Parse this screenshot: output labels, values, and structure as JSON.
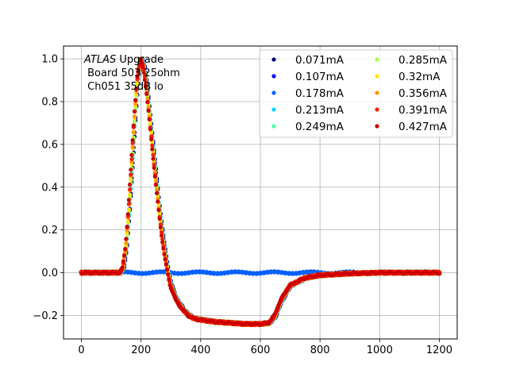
{
  "chart_data": {
    "type": "scatter",
    "title": "",
    "xlabel": "",
    "ylabel": "",
    "xlim": [
      -60,
      1260
    ],
    "ylim": [
      -0.31,
      1.06
    ],
    "xticks": [
      0,
      200,
      400,
      600,
      800,
      1000,
      1200
    ],
    "yticks": [
      -0.2,
      0.0,
      0.2,
      0.4,
      0.6,
      0.8,
      1.0
    ],
    "xtick_labels": [
      "0",
      "200",
      "400",
      "600",
      "800",
      "1000",
      "1200"
    ],
    "ytick_labels": [
      "−0.2",
      "0.0",
      "0.2",
      "0.4",
      "0.6",
      "0.8",
      "1.0"
    ],
    "grid": true,
    "legend": {
      "placement": "top-right",
      "columns": 2
    },
    "annotation": {
      "line1_italic": "ATLAS",
      "line1_rest": " Upgrade",
      "line2": " Board 503 25ohm",
      "line3": " Ch051 35dB lo"
    },
    "pulse_shape": {
      "x": [
        0,
        100,
        130,
        140,
        150,
        160,
        170,
        180,
        190,
        200,
        210,
        220,
        230,
        240,
        250,
        260,
        270,
        280,
        290,
        300,
        320,
        340,
        360,
        380,
        400,
        450,
        500,
        550,
        600,
        630,
        650,
        670,
        700,
        750,
        800,
        900,
        1000,
        1100,
        1200
      ],
      "y": [
        0.0,
        0.0,
        0.0,
        0.02,
        0.12,
        0.3,
        0.52,
        0.75,
        0.92,
        1.0,
        0.96,
        0.85,
        0.72,
        0.58,
        0.44,
        0.31,
        0.19,
        0.09,
        0.01,
        -0.06,
        -0.13,
        -0.17,
        -0.2,
        -0.215,
        -0.22,
        -0.23,
        -0.235,
        -0.24,
        -0.24,
        -0.235,
        -0.2,
        -0.13,
        -0.06,
        -0.025,
        -0.012,
        -0.004,
        0.0,
        0.0,
        0.0
      ]
    },
    "series": [
      {
        "name": "0.071mA",
        "color": "#00007f",
        "kind": "pulse"
      },
      {
        "name": "0.107mA",
        "color": "#0000f1",
        "kind": "pulse"
      },
      {
        "name": "0.178mA",
        "color": "#0060ff",
        "kind": "flat"
      },
      {
        "name": "0.213mA",
        "color": "#00d4ff",
        "kind": "pulse"
      },
      {
        "name": "0.249mA",
        "color": "#4dffaa",
        "kind": "pulse"
      },
      {
        "name": "0.285mA",
        "color": "#aaff4d",
        "kind": "pulse"
      },
      {
        "name": "0.32mA",
        "color": "#ffe500",
        "kind": "pulse"
      },
      {
        "name": "0.356mA",
        "color": "#ff9900",
        "kind": "pulse"
      },
      {
        "name": "0.391mA",
        "color": "#ff1e00",
        "kind": "pulse"
      },
      {
        "name": "0.427mA",
        "color": "#cc0000",
        "kind": "pulse"
      }
    ]
  }
}
